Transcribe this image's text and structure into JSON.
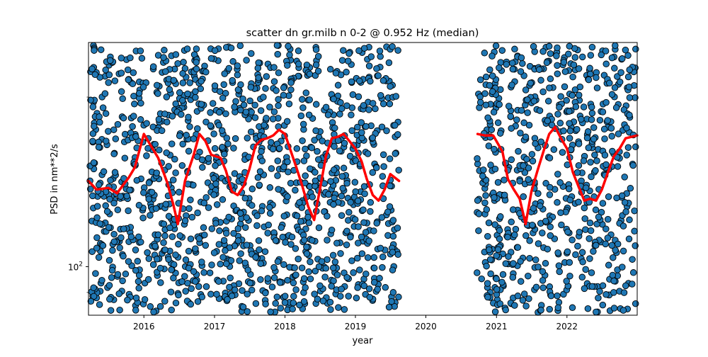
{
  "chart_data": {
    "type": "scatter",
    "title": "scatter dn gr.milb n 0-2 @ 0.952 Hz (median)",
    "xlabel": "year",
    "ylabel": "PSD in nm**2/s",
    "xlim": [
      "2015-03-20",
      "2022-12-31"
    ],
    "ylim": [
      82,
      250
    ],
    "yscale": "log",
    "grid": false,
    "x_ticks": [
      "2016",
      "2017",
      "2018",
      "2019",
      "2020",
      "2021",
      "2022"
    ],
    "y_tick_labels": [
      {
        "value": 100,
        "base": "10",
        "exp": "2"
      }
    ],
    "y_minor_ticks": [
      90,
      200
    ],
    "scatter": {
      "color": "#1f77b4",
      "edgecolor": "#000000",
      "data_gap": [
        "2019-08-15",
        "2020-09-25"
      ],
      "y_range": [
        82,
        250
      ]
    },
    "series": [
      {
        "kind": "median-line",
        "color": "#ff0000",
        "x": [
          "2015-03-20",
          "2015-05-01",
          "2015-07-01",
          "2015-08-15",
          "2015-10-15",
          "2015-11-15",
          "2016-01-01",
          "2016-02-01",
          "2016-03-15",
          "2016-05-01",
          "2016-06-01",
          "2016-06-25",
          "2016-08-01",
          "2016-09-15",
          "2016-10-15",
          "2016-11-15",
          "2016-12-15",
          "2017-02-01",
          "2017-03-01",
          "2017-04-01",
          "2017-05-01",
          "2017-06-01",
          "2017-07-01",
          "2017-08-01",
          "2017-09-01",
          "2017-10-01",
          "2017-11-01",
          "2017-12-01",
          "2018-01-01",
          "2018-02-01",
          "2018-03-01",
          "2018-04-01",
          "2018-05-01",
          "2018-06-01",
          "2018-07-01",
          "2018-08-01",
          "2018-09-01",
          "2018-10-01",
          "2018-11-01",
          "2018-12-01",
          "2019-01-01",
          "2019-02-01",
          "2019-03-01",
          "2019-04-01",
          "2019-05-01",
          "2019-06-01",
          "2019-07-01",
          "2019-08-15",
          "2020-09-25",
          "2020-11-01",
          "2020-12-15",
          "2021-02-01",
          "2021-03-01",
          "2021-04-01",
          "2021-05-01",
          "2021-06-01",
          "2021-07-01",
          "2021-08-01",
          "2021-09-01",
          "2021-10-01",
          "2021-11-01",
          "2021-12-01",
          "2022-01-01",
          "2022-02-01",
          "2022-03-01",
          "2022-04-01",
          "2022-05-01",
          "2022-06-01",
          "2022-07-01",
          "2022-08-01",
          "2022-09-01",
          "2022-10-01",
          "2022-11-01",
          "2022-12-31"
        ],
        "y": [
          142,
          137,
          138,
          135,
          144,
          150,
          172,
          165,
          156,
          141,
          129,
          119,
          142,
          158,
          172,
          167,
          158,
          156,
          148,
          136,
          134,
          139,
          149,
          164,
          168,
          169,
          171,
          175,
          172,
          160,
          150,
          139,
          128,
          121,
          137,
          157,
          169,
          170,
          172,
          167,
          162,
          154,
          143,
          134,
          131,
          137,
          146,
          142,
          172,
          171,
          171,
          160,
          143,
          137,
          132,
          119,
          136,
          148,
          160,
          172,
          177,
          169,
          162,
          147,
          139,
          131,
          132,
          131,
          137,
          147,
          157,
          162,
          169,
          171
        ]
      }
    ]
  }
}
